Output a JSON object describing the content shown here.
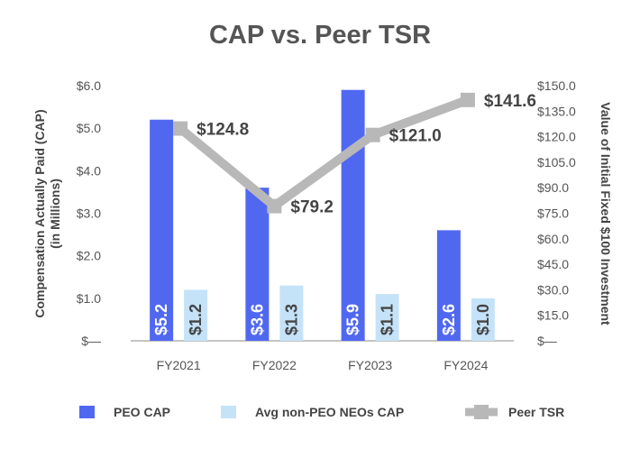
{
  "chart_data": {
    "type": "bar",
    "title": "CAP vs. Peer TSR",
    "categories": [
      "FY2021",
      "FY2022",
      "FY2023",
      "FY2024"
    ],
    "ylabel": "Compensation Actually Paid (CAP)",
    "ylabel_sub": "(in Millions)",
    "y2label": "Value of Initial Fixed $100 Investment",
    "ylim": [
      0,
      6
    ],
    "y2lim": [
      0,
      150
    ],
    "yticks": [
      "$—",
      "$1.0",
      "$2.0",
      "$3.0",
      "$4.0",
      "$5.0",
      "$6.0"
    ],
    "y2ticks": [
      "$—",
      "$15.0",
      "$30.0",
      "$45.0",
      "$60.0",
      "$75.0",
      "$90.0",
      "$105.0",
      "$120.0",
      "$135.0",
      "$150.0"
    ],
    "series": [
      {
        "name": "PEO CAP",
        "kind": "bar",
        "axis": "left",
        "color": "#5068f0",
        "values": [
          5.2,
          3.6,
          5.9,
          2.6
        ],
        "labels": [
          "$5.2",
          "$3.6",
          "$5.9",
          "$2.6"
        ]
      },
      {
        "name": "Avg non-PEO NEOs CAP",
        "kind": "bar",
        "axis": "left",
        "color": "#c5e3f8",
        "values": [
          1.2,
          1.3,
          1.1,
          1.0
        ],
        "labels": [
          "$1.2",
          "$1.3",
          "$1.1",
          "$1.0"
        ]
      },
      {
        "name": "Peer TSR",
        "kind": "line",
        "axis": "right",
        "color": "#b8b8b8",
        "values": [
          124.8,
          79.2,
          121.0,
          141.6
        ],
        "labels": [
          "$124.8",
          "$79.2",
          "$121.0",
          "$141.6"
        ]
      }
    ],
    "legend_position": "bottom"
  }
}
